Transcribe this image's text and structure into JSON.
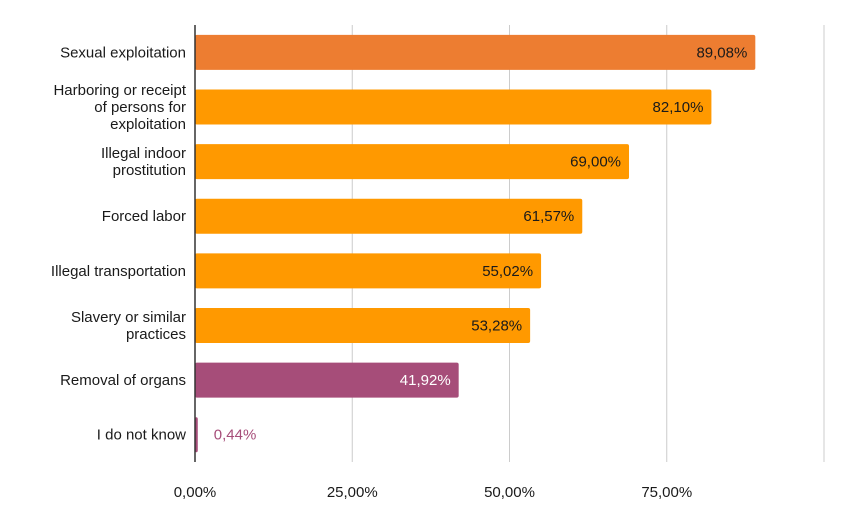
{
  "chart_data": {
    "type": "bar",
    "orientation": "horizontal",
    "title": "",
    "xlabel": "",
    "ylabel": "",
    "xlim": [
      0,
      100
    ],
    "grid": true,
    "categories": [
      "Sexual exploitation",
      "Harboring or receipt of persons for exploitation",
      "Illegal indoor prostitution",
      "Forced labor",
      "Illegal transportation",
      "Slavery or similar practices",
      "Removal of organs",
      "I do not know"
    ],
    "category_label_lines": [
      [
        "Sexual exploitation"
      ],
      [
        "Harboring or receipt",
        "of persons for",
        "exploitation"
      ],
      [
        "Illegal indoor",
        "prostitution"
      ],
      [
        "Forced labor"
      ],
      [
        "Illegal transportation"
      ],
      [
        "Slavery or similar",
        "practices"
      ],
      [
        "Removal of organs"
      ],
      [
        "I do not know"
      ]
    ],
    "values": [
      89.08,
      82.1,
      69.0,
      61.57,
      55.02,
      53.28,
      41.92,
      0.44
    ],
    "value_labels": [
      "89,08%",
      "82,10%",
      "69,00%",
      "61,57%",
      "55,02%",
      "53,28%",
      "41,92%",
      "0,44%"
    ],
    "bar_colors": [
      "#ed7d31",
      "#ff9900",
      "#ff9900",
      "#ff9900",
      "#ff9900",
      "#ff9900",
      "#a64d79",
      "#a64d79"
    ],
    "label_colors": [
      "#1a1a1a",
      "#1a1a1a",
      "#1a1a1a",
      "#1a1a1a",
      "#1a1a1a",
      "#1a1a1a",
      "#ffffff",
      "#a64d79"
    ],
    "x_ticks": [
      0,
      25,
      50,
      75,
      100
    ],
    "x_tick_labels": [
      "0,00%",
      "25,00%",
      "50,00%",
      "75,00%",
      ""
    ]
  }
}
